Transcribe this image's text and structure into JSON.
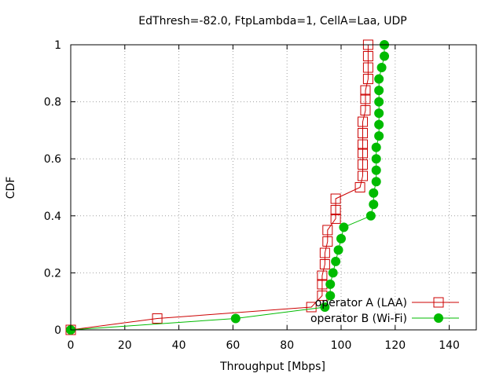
{
  "chart_data": {
    "type": "line",
    "title": "EdThresh=-82.0, FtpLambda=1, CellA=Laa, UDP",
    "xlabel": "Throughput [Mbps]",
    "ylabel": "CDF",
    "xlim": [
      0,
      150
    ],
    "ylim": [
      0,
      1
    ],
    "xticks": [
      0,
      20,
      40,
      60,
      80,
      100,
      120,
      140
    ],
    "yticks": [
      0,
      0.2,
      0.4,
      0.6,
      0.8,
      1
    ],
    "xtick_labels": [
      "0",
      "20",
      "40",
      "60",
      "80",
      "100",
      "120",
      "140"
    ],
    "ytick_labels": [
      "0",
      "0.2",
      "0.4",
      "0.6",
      "0.8",
      "1"
    ],
    "grid": true,
    "legend_position": "bottom-right",
    "series": [
      {
        "name": "operator A (LAA)",
        "color": "#cc0000",
        "marker": "open-square",
        "points": [
          [
            0,
            0
          ],
          [
            32,
            0.04
          ],
          [
            89,
            0.08
          ],
          [
            93,
            0.12
          ],
          [
            93,
            0.16
          ],
          [
            93,
            0.19
          ],
          [
            94,
            0.23
          ],
          [
            94,
            0.27
          ],
          [
            95,
            0.31
          ],
          [
            95,
            0.35
          ],
          [
            98,
            0.39
          ],
          [
            98,
            0.42
          ],
          [
            98,
            0.46
          ],
          [
            107,
            0.5
          ],
          [
            108,
            0.54
          ],
          [
            108,
            0.58
          ],
          [
            108,
            0.62
          ],
          [
            108,
            0.65
          ],
          [
            108,
            0.69
          ],
          [
            108,
            0.73
          ],
          [
            109,
            0.77
          ],
          [
            109,
            0.81
          ],
          [
            109,
            0.84
          ],
          [
            110,
            0.88
          ],
          [
            110,
            0.92
          ],
          [
            110,
            0.96
          ],
          [
            110,
            1.0
          ]
        ]
      },
      {
        "name": "operator B (Wi-Fi)",
        "color": "#00bb00",
        "marker": "filled-circle",
        "points": [
          [
            0,
            0
          ],
          [
            61,
            0.04
          ],
          [
            94,
            0.08
          ],
          [
            96,
            0.12
          ],
          [
            96,
            0.16
          ],
          [
            97,
            0.2
          ],
          [
            98,
            0.24
          ],
          [
            99,
            0.28
          ],
          [
            100,
            0.32
          ],
          [
            101,
            0.36
          ],
          [
            111,
            0.4
          ],
          [
            112,
            0.44
          ],
          [
            112,
            0.48
          ],
          [
            113,
            0.52
          ],
          [
            113,
            0.56
          ],
          [
            113,
            0.6
          ],
          [
            113,
            0.64
          ],
          [
            114,
            0.68
          ],
          [
            114,
            0.72
          ],
          [
            114,
            0.76
          ],
          [
            114,
            0.8
          ],
          [
            114,
            0.84
          ],
          [
            114,
            0.88
          ],
          [
            115,
            0.92
          ],
          [
            116,
            0.96
          ],
          [
            116,
            1.0
          ]
        ]
      }
    ]
  }
}
